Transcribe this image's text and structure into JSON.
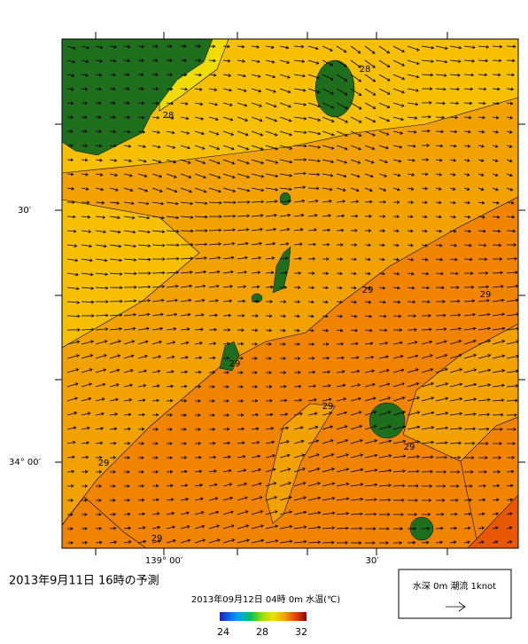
{
  "map": {
    "title": "2013年9月11日  16時の予測",
    "subtitle": "2013年09月12日 04時 0m 水温(℃)",
    "colorbar_labels": [
      "24",
      "28",
      "32"
    ],
    "legend": "水深 0m  潮流 1knot",
    "lat_labels": [
      "30′",
      "34° 00′"
    ],
    "lon_labels": [
      "139° 00′",
      "30′"
    ],
    "contour_labels": [
      "28",
      "28",
      "29",
      "29",
      "29",
      "29",
      "29",
      "29",
      "29"
    ]
  }
}
